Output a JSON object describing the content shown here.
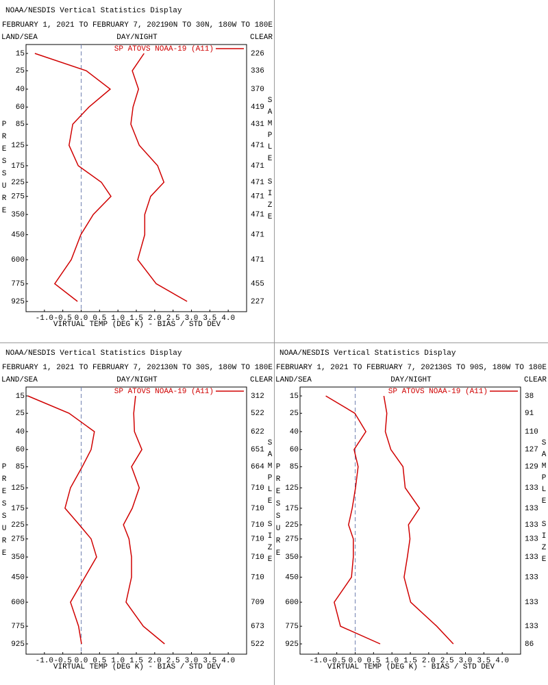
{
  "chart_data": [
    {
      "type": "line",
      "title": "NOAA/NESDIS Vertical Statistics Display",
      "date_range": "FEBRUARY 1, 2021 TO FEBRUARY 7, 2021",
      "region": "90N TO 30N, 180W TO 180E",
      "left_label": "LAND/SEA",
      "center_label": "DAY/NIGHT",
      "right_label": "CLEAR",
      "y_label": "PRESSURE",
      "y2_label": "SAMPLE SIZE",
      "x_label": "VIRTUAL TEMP (DEG K) - BIAS / STD DEV",
      "categories": [
        15,
        25,
        40,
        60,
        85,
        125,
        175,
        225,
        275,
        350,
        450,
        600,
        775,
        925
      ],
      "sample_sizes": [
        226,
        336,
        370,
        419,
        431,
        471,
        471,
        471,
        471,
        471,
        471,
        471,
        455,
        227
      ],
      "series": [
        {
          "name": "SP ATOVS NOAA-19 (A11)",
          "color": "#d00000",
          "bias": [
            -1.26,
            0.14,
            0.79,
            0.21,
            -0.23,
            -0.33,
            -0.08,
            0.55,
            0.81,
            0.33,
            -0.01,
            -0.27,
            -0.72,
            -0.1
          ],
          "std_dev": [
            1.71,
            1.39,
            1.56,
            1.41,
            1.35,
            1.58,
            2.08,
            2.25,
            1.89,
            1.73,
            1.73,
            1.54,
            2.04,
            2.88
          ]
        }
      ],
      "xlim": [
        -1.5,
        4.5
      ],
      "xticks": [
        {
          "value": -1,
          "label": "-1.0"
        },
        -0.5,
        {
          "value": 0,
          "label": "0.0"
        },
        0.5,
        {
          "value": 1,
          "label": "1.0"
        },
        1.5,
        {
          "value": 2,
          "label": "2.0"
        },
        2.5,
        {
          "value": 3,
          "label": "3.0"
        },
        3.5,
        {
          "value": 4,
          "label": "4.0"
        }
      ]
    },
    {
      "type": "line",
      "title": "NOAA/NESDIS Vertical Statistics Display",
      "date_range": "FEBRUARY 1, 2021 TO FEBRUARY 7, 2021",
      "region": "30N TO 30S, 180W TO 180E",
      "left_label": "LAND/SEA",
      "center_label": "DAY/NIGHT",
      "right_label": "CLEAR",
      "y_label": "PRESSURE",
      "y2_label": "SAMPLE SIZE",
      "x_label": "VIRTUAL TEMP (DEG K) - BIAS / STD DEV",
      "categories": [
        15,
        25,
        40,
        60,
        85,
        125,
        175,
        225,
        275,
        350,
        450,
        600,
        775,
        925
      ],
      "sample_sizes": [
        312,
        522,
        622,
        651,
        664,
        710,
        710,
        710,
        710,
        710,
        710,
        709,
        673,
        522
      ],
      "series": [
        {
          "name": "SP ATOVS NOAA-19 (A11)",
          "color": "#d00000",
          "bias": [
            -1.45,
            -0.33,
            0.36,
            0.27,
            0.03,
            -0.29,
            -0.44,
            -0.05,
            0.27,
            0.42,
            0.1,
            -0.29,
            -0.07,
            0.01
          ],
          "std_dev": [
            1.48,
            1.43,
            1.45,
            1.65,
            1.37,
            1.58,
            1.39,
            1.15,
            1.3,
            1.37,
            1.37,
            1.22,
            1.69,
            2.27
          ]
        }
      ],
      "xlim": [
        -1.5,
        4.5
      ],
      "xticks": [
        {
          "value": -1,
          "label": "-1.0"
        },
        -0.5,
        {
          "value": 0,
          "label": "0.0"
        },
        0.5,
        {
          "value": 1,
          "label": "1.0"
        },
        1.5,
        {
          "value": 2,
          "label": "2.0"
        },
        2.5,
        {
          "value": 3,
          "label": "3.0"
        },
        3.5,
        {
          "value": 4,
          "label": "4.0"
        }
      ]
    },
    {
      "type": "line",
      "title": "NOAA/NESDIS Vertical Statistics Display",
      "date_range": "FEBRUARY 1, 2021 TO FEBRUARY 7, 2021",
      "region": "30S TO 90S, 180W TO 180E",
      "left_label": "LAND/SEA",
      "center_label": "DAY/NIGHT",
      "right_label": "CLEAR",
      "y_label": "PRESSURE",
      "y2_label": "SAMPLE SIZE",
      "x_label": "VIRTUAL TEMP (DEG K) - BIAS / STD DEV",
      "categories": [
        15,
        25,
        40,
        60,
        85,
        125,
        175,
        225,
        275,
        350,
        450,
        600,
        775,
        925
      ],
      "sample_sizes": [
        38,
        91,
        110,
        127,
        129,
        133,
        133,
        133,
        133,
        133,
        133,
        133,
        133,
        86
      ],
      "series": [
        {
          "name": "SP ATOVS NOAA-19 (A11)",
          "color": "#d00000",
          "bias": [
            -0.8,
            -0.01,
            0.29,
            -0.03,
            0.08,
            0.01,
            -0.08,
            -0.18,
            -0.05,
            -0.05,
            -0.1,
            -0.57,
            -0.4,
            0.68
          ],
          "std_dev": [
            0.78,
            0.86,
            0.82,
            0.97,
            1.3,
            1.36,
            1.75,
            1.45,
            1.49,
            1.42,
            1.33,
            1.51,
            2.22,
            2.67
          ]
        }
      ],
      "xlim": [
        -1.5,
        4.5
      ],
      "xticks": [
        {
          "value": -1,
          "label": "-1.0"
        },
        -0.5,
        {
          "value": 0,
          "label": "0.0"
        },
        0.5,
        {
          "value": 1,
          "label": "1.0"
        },
        1.5,
        {
          "value": 2,
          "label": "2.0"
        },
        2.5,
        {
          "value": 3,
          "label": "3.0"
        },
        3.5,
        {
          "value": 4,
          "label": "4.0"
        }
      ]
    }
  ]
}
